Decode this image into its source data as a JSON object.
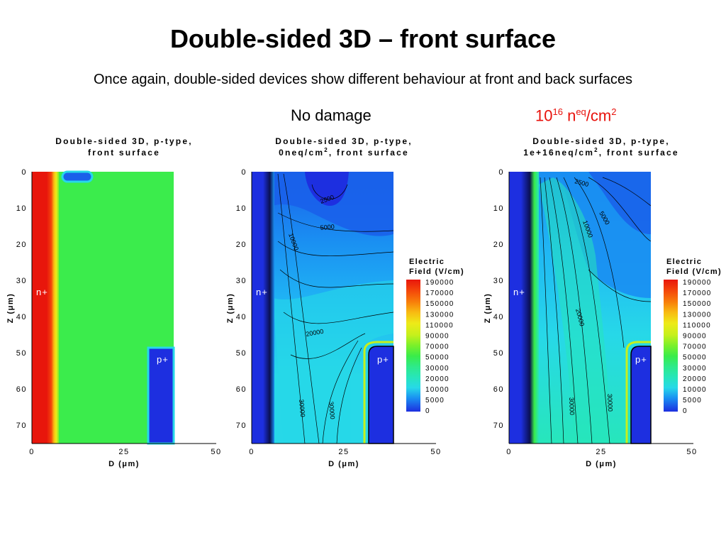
{
  "slide": {
    "title": "Double-sided 3D – front surface",
    "subtitle": "Once again, double-sided devices show different behaviour at front and back surfaces",
    "label_nodamage": "No damage",
    "label_damage_base": "10",
    "label_damage_exp": "16",
    "label_damage_unit": " n",
    "label_damage_unit_sup": "eq",
    "label_damage_tail": "/cm",
    "label_damage_tail_sup": "2"
  },
  "colors": {
    "accent_red": "#e8120c",
    "field_scale": [
      "#1d2fe0",
      "#1a60ea",
      "#1a8ef2",
      "#20b8f4",
      "#27d8e8",
      "#27e6bb",
      "#2eea8a",
      "#39ec4a",
      "#7af02a",
      "#c5f01c",
      "#eeea18",
      "#f8bc12",
      "#f87f0a",
      "#f4440a",
      "#e8160c"
    ]
  },
  "chart_data": [
    {
      "type": "heatmap",
      "title_line1": "Double-sided 3D, p-type,",
      "title_line2": "front surface",
      "xlabel": "D (μm)",
      "ylabel": "Z (μm)",
      "x_ticks": [
        "0",
        "25",
        "50"
      ],
      "y_ticks": [
        "0",
        "10",
        "20",
        "30",
        "40",
        "50",
        "60",
        "70"
      ],
      "xlim": [
        0,
        50
      ],
      "ylim": [
        0,
        75
      ],
      "regions": [
        "n+",
        "p+"
      ],
      "contour_labels": []
    },
    {
      "type": "heatmap",
      "title_line1": "Double-sided 3D, p-type,",
      "title_line2_pre": "0neq/cm",
      "title_line2_sup": "2",
      "title_line2_post": ", front surface",
      "xlabel": "D (μm)",
      "ylabel": "Z (μm)",
      "x_ticks": [
        "0",
        "25",
        "50"
      ],
      "y_ticks": [
        "0",
        "10",
        "20",
        "30",
        "40",
        "50",
        "60",
        "70"
      ],
      "xlim": [
        0,
        50
      ],
      "ylim": [
        0,
        75
      ],
      "regions": [
        "n+",
        "p+"
      ],
      "contour_labels": [
        "2500",
        "5000",
        "10000",
        "20000",
        "30000",
        "30000"
      ],
      "legend": {
        "title_line1": "Electric",
        "title_line2": "Field (V/cm)",
        "values": [
          "190000",
          "170000",
          "150000",
          "130000",
          "110000",
          "90000",
          "70000",
          "50000",
          "30000",
          "20000",
          "10000",
          "5000",
          "0"
        ]
      }
    },
    {
      "type": "heatmap",
      "title_line1": "Double-sided 3D, p-type,",
      "title_line2_pre": "1e+16neq/cm",
      "title_line2_sup": "2",
      "title_line2_post": ", front surface",
      "xlabel": "D (μm)",
      "ylabel": "Z (μm)",
      "x_ticks": [
        "0",
        "25",
        "50"
      ],
      "y_ticks": [
        "0",
        "10",
        "20",
        "30",
        "40",
        "50",
        "60",
        "70"
      ],
      "xlim": [
        0,
        50
      ],
      "ylim": [
        0,
        75
      ],
      "regions": [
        "n+",
        "p+"
      ],
      "contour_labels": [
        "2500",
        "5000",
        "10000",
        "20000",
        "30000",
        "30000"
      ],
      "legend": {
        "title_line1": "Electric",
        "title_line2": "Field (V/cm)",
        "values": [
          "190000",
          "170000",
          "150000",
          "130000",
          "110000",
          "90000",
          "70000",
          "50000",
          "30000",
          "20000",
          "10000",
          "5000",
          "0"
        ]
      }
    }
  ]
}
